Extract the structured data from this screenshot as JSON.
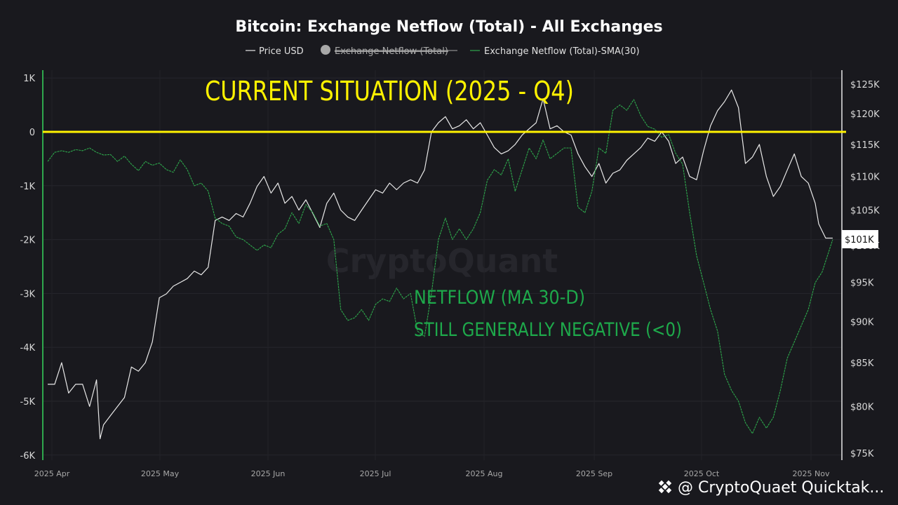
{
  "chart_data": {
    "type": "line",
    "title": "Bitcoin: Exchange Netflow (Total) - All Exchanges",
    "legend": [
      {
        "name": "Price USD",
        "color": "#e8e8e8",
        "hidden": false
      },
      {
        "name": "Exchange Netflow (Total)",
        "color": "#9a9a9a",
        "hidden": true
      },
      {
        "name": "Exchange Netflow (Total)-SMA(30)",
        "color": "#2ea84c",
        "hidden": false
      }
    ],
    "x_ticks": [
      "2025 Apr",
      "2025 May",
      "2025 Jun",
      "2025 Jul",
      "2025 Aug",
      "2025 Sep",
      "2025 Oct",
      "2025 Nov"
    ],
    "y_left": {
      "ticks": [
        "1K",
        "0",
        "-1K",
        "-2K",
        "-3K",
        "-4K",
        "-5K",
        "-6K"
      ],
      "tick_values": [
        1000,
        0,
        -1000,
        -2000,
        -3000,
        -4000,
        -5000,
        -6000
      ],
      "range": [
        -6000,
        1000
      ]
    },
    "y_right": {
      "ticks": [
        "$125K",
        "$120K",
        "$115K",
        "$110K",
        "$105K",
        "$100K",
        "$95K",
        "$90K",
        "$85K",
        "$80K",
        "$75K"
      ],
      "tick_values": [
        125000,
        120000,
        115000,
        110000,
        105000,
        100000,
        95000,
        90000,
        85000,
        80000,
        75000
      ]
    },
    "x_range_days": [
      0,
      220
    ],
    "series": [
      {
        "name": "Price USD",
        "axis": "right",
        "color": "#e8e8e8",
        "points": [
          [
            0,
            82500
          ],
          [
            2,
            82500
          ],
          [
            4,
            85000
          ],
          [
            6,
            81500
          ],
          [
            8,
            82500
          ],
          [
            10,
            82500
          ],
          [
            12,
            80000
          ],
          [
            14,
            83000
          ],
          [
            15,
            76500
          ],
          [
            16,
            78000
          ],
          [
            18,
            79000
          ],
          [
            20,
            80000
          ],
          [
            22,
            81000
          ],
          [
            24,
            84500
          ],
          [
            26,
            84000
          ],
          [
            28,
            85000
          ],
          [
            30,
            87500
          ],
          [
            32,
            93000
          ],
          [
            34,
            93500
          ],
          [
            36,
            94500
          ],
          [
            38,
            95000
          ],
          [
            40,
            95500
          ],
          [
            42,
            96500
          ],
          [
            44,
            96000
          ],
          [
            46,
            97000
          ],
          [
            48,
            103500
          ],
          [
            50,
            104000
          ],
          [
            52,
            103500
          ],
          [
            54,
            104500
          ],
          [
            56,
            104000
          ],
          [
            58,
            106000
          ],
          [
            60,
            108500
          ],
          [
            62,
            110000
          ],
          [
            64,
            107500
          ],
          [
            66,
            109000
          ],
          [
            68,
            106000
          ],
          [
            70,
            107000
          ],
          [
            72,
            105000
          ],
          [
            74,
            106500
          ],
          [
            76,
            104500
          ],
          [
            78,
            102500
          ],
          [
            80,
            106000
          ],
          [
            82,
            107500
          ],
          [
            84,
            105000
          ],
          [
            86,
            104000
          ],
          [
            88,
            103500
          ],
          [
            90,
            105000
          ],
          [
            92,
            106500
          ],
          [
            94,
            108000
          ],
          [
            96,
            107500
          ],
          [
            98,
            109000
          ],
          [
            100,
            108000
          ],
          [
            102,
            109000
          ],
          [
            104,
            109500
          ],
          [
            106,
            109000
          ],
          [
            108,
            111000
          ],
          [
            110,
            117000
          ],
          [
            112,
            118500
          ],
          [
            114,
            119500
          ],
          [
            116,
            117500
          ],
          [
            118,
            118000
          ],
          [
            120,
            119000
          ],
          [
            122,
            117500
          ],
          [
            124,
            118500
          ],
          [
            126,
            116500
          ],
          [
            128,
            114500
          ],
          [
            130,
            113500
          ],
          [
            132,
            114000
          ],
          [
            134,
            115000
          ],
          [
            136,
            116500
          ],
          [
            138,
            117500
          ],
          [
            140,
            118500
          ],
          [
            142,
            122500
          ],
          [
            144,
            117500
          ],
          [
            146,
            118000
          ],
          [
            148,
            117000
          ],
          [
            150,
            116500
          ],
          [
            152,
            113500
          ],
          [
            154,
            111500
          ],
          [
            156,
            110000
          ],
          [
            158,
            112000
          ],
          [
            160,
            109000
          ],
          [
            162,
            110500
          ],
          [
            164,
            111000
          ],
          [
            166,
            112500
          ],
          [
            168,
            113500
          ],
          [
            170,
            114500
          ],
          [
            172,
            116000
          ],
          [
            174,
            115500
          ],
          [
            176,
            117000
          ],
          [
            178,
            115500
          ],
          [
            180,
            112000
          ],
          [
            182,
            113000
          ],
          [
            184,
            110000
          ],
          [
            186,
            109500
          ],
          [
            188,
            114000
          ],
          [
            190,
            118000
          ],
          [
            192,
            120500
          ],
          [
            194,
            122000
          ],
          [
            196,
            124000
          ],
          [
            198,
            121000
          ],
          [
            200,
            112000
          ],
          [
            202,
            113000
          ],
          [
            204,
            115000
          ],
          [
            206,
            110000
          ],
          [
            208,
            107000
          ],
          [
            210,
            108500
          ],
          [
            212,
            111000
          ],
          [
            214,
            113500
          ],
          [
            216,
            110000
          ],
          [
            218,
            109000
          ],
          [
            220,
            106000
          ],
          [
            221,
            103000
          ],
          [
            222,
            102000
          ],
          [
            223,
            101000
          ],
          [
            225,
            101000
          ]
        ]
      },
      {
        "name": "Exchange Netflow (Total)-SMA(30)",
        "axis": "left",
        "color": "#2ea84c",
        "points": [
          [
            0,
            -550
          ],
          [
            2,
            -380
          ],
          [
            4,
            -350
          ],
          [
            6,
            -380
          ],
          [
            8,
            -330
          ],
          [
            10,
            -350
          ],
          [
            12,
            -300
          ],
          [
            14,
            -380
          ],
          [
            16,
            -430
          ],
          [
            18,
            -420
          ],
          [
            20,
            -550
          ],
          [
            22,
            -450
          ],
          [
            24,
            -600
          ],
          [
            26,
            -720
          ],
          [
            28,
            -550
          ],
          [
            30,
            -620
          ],
          [
            32,
            -580
          ],
          [
            34,
            -700
          ],
          [
            36,
            -750
          ],
          [
            38,
            -520
          ],
          [
            40,
            -700
          ],
          [
            42,
            -1000
          ],
          [
            44,
            -950
          ],
          [
            46,
            -1100
          ],
          [
            48,
            -1600
          ],
          [
            50,
            -1700
          ],
          [
            52,
            -1750
          ],
          [
            54,
            -1950
          ],
          [
            56,
            -2000
          ],
          [
            58,
            -2100
          ],
          [
            60,
            -2200
          ],
          [
            62,
            -2100
          ],
          [
            64,
            -2150
          ],
          [
            66,
            -1900
          ],
          [
            68,
            -1800
          ],
          [
            70,
            -1500
          ],
          [
            72,
            -1700
          ],
          [
            74,
            -1350
          ],
          [
            76,
            -1500
          ],
          [
            78,
            -1750
          ],
          [
            80,
            -1700
          ],
          [
            82,
            -2000
          ],
          [
            84,
            -3300
          ],
          [
            86,
            -3500
          ],
          [
            88,
            -3450
          ],
          [
            90,
            -3300
          ],
          [
            92,
            -3500
          ],
          [
            94,
            -3200
          ],
          [
            96,
            -3100
          ],
          [
            98,
            -3150
          ],
          [
            100,
            -2900
          ],
          [
            102,
            -3100
          ],
          [
            104,
            -3000
          ],
          [
            106,
            -3700
          ],
          [
            108,
            -3800
          ],
          [
            110,
            -3000
          ],
          [
            112,
            -2000
          ],
          [
            114,
            -1600
          ],
          [
            116,
            -2000
          ],
          [
            118,
            -1800
          ],
          [
            120,
            -2000
          ],
          [
            122,
            -1800
          ],
          [
            124,
            -1500
          ],
          [
            126,
            -900
          ],
          [
            128,
            -700
          ],
          [
            130,
            -800
          ],
          [
            132,
            -500
          ],
          [
            134,
            -1100
          ],
          [
            136,
            -700
          ],
          [
            138,
            -300
          ],
          [
            140,
            -500
          ],
          [
            142,
            -150
          ],
          [
            144,
            -500
          ],
          [
            146,
            -400
          ],
          [
            148,
            -300
          ],
          [
            150,
            -300
          ],
          [
            152,
            -1400
          ],
          [
            154,
            -1500
          ],
          [
            156,
            -1100
          ],
          [
            158,
            -300
          ],
          [
            160,
            -400
          ],
          [
            162,
            400
          ],
          [
            164,
            500
          ],
          [
            166,
            400
          ],
          [
            168,
            600
          ],
          [
            170,
            300
          ],
          [
            172,
            100
          ],
          [
            174,
            50
          ],
          [
            176,
            -100
          ],
          [
            178,
            -50
          ],
          [
            180,
            -400
          ],
          [
            182,
            -600
          ],
          [
            184,
            -1500
          ],
          [
            186,
            -2300
          ],
          [
            188,
            -2800
          ],
          [
            190,
            -3300
          ],
          [
            192,
            -3700
          ],
          [
            194,
            -4500
          ],
          [
            196,
            -4800
          ],
          [
            198,
            -5000
          ],
          [
            200,
            -5400
          ],
          [
            202,
            -5600
          ],
          [
            204,
            -5300
          ],
          [
            206,
            -5500
          ],
          [
            208,
            -5300
          ],
          [
            210,
            -4800
          ],
          [
            212,
            -4200
          ],
          [
            214,
            -3900
          ],
          [
            216,
            -3600
          ],
          [
            218,
            -3300
          ],
          [
            220,
            -2800
          ],
          [
            222,
            -2600
          ],
          [
            224,
            -2200
          ],
          [
            225,
            -2000
          ]
        ]
      }
    ],
    "current_price_badge": "$101K",
    "reference_line": {
      "axis": "left",
      "value": 0,
      "color": "#fff200"
    },
    "annotations": {
      "headline": "CURRENT SITUATION (2025 - Q4)",
      "netflow_line1": "NETFLOW (MA 30-D)",
      "netflow_line2": "STILL GENERALLY NEGATIVE (<0)"
    },
    "watermark": "CryptoQuant",
    "handle": "@ CryptoQuaet Quicktak..."
  }
}
